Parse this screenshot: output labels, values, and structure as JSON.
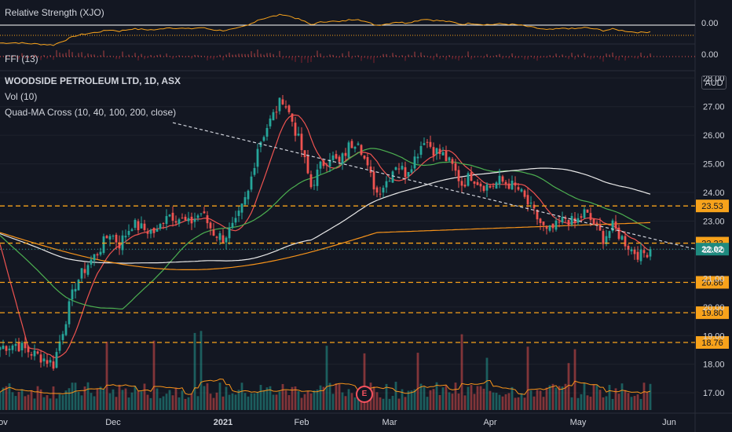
{
  "indicators": {
    "rs_label": "Relative Strength (XJO)",
    "rs_value": "0.00",
    "ffi_label": "FFI (13)",
    "ffi_value": "0.00"
  },
  "main": {
    "title": "WOODSIDE PETROLEUM LTD, 1D, ASX",
    "vol_label": "Vol (10)",
    "ma_label": "Quad-MA Cross (10, 40, 100, 200, close)",
    "currency": "AUD",
    "earnings_marker": "E"
  },
  "levels": [
    {
      "value": 23.53,
      "label": "23.53"
    },
    {
      "value": 22.23,
      "label": "22.23"
    },
    {
      "value": 20.86,
      "label": "20.86"
    },
    {
      "value": 19.8,
      "label": "19.80"
    },
    {
      "value": 18.76,
      "label": "18.76"
    }
  ],
  "current_price": {
    "value": 22.02,
    "label": "22.02"
  },
  "colors": {
    "up": "#26a69a",
    "down": "#ef5350",
    "level": "#f7a21b",
    "trend": "#d1d4dc",
    "ma10": "#ef5350",
    "ma40": "#4caf50",
    "ma100": "#e8e8e8",
    "ma200": "#f7931a",
    "rs": "#f7a21b"
  },
  "chart_data": {
    "type": "candlestick",
    "title": "WOODSIDE PETROLEUM LTD, 1D, ASX",
    "ylim": [
      16.4,
      28.2
    ],
    "y_ticks": [
      17,
      18,
      19,
      20,
      21,
      22,
      23,
      24,
      25,
      26,
      27,
      28
    ],
    "y_tick_labels": [
      "17.00",
      "18.00",
      "19.00",
      "20.00",
      "21.00",
      "22.00",
      "23.00",
      "24.00",
      "25.00",
      "26.00",
      "27.00",
      "28.00"
    ],
    "x_labels": [
      "Nov",
      "Dec",
      "2021",
      "Feb",
      "Mar",
      "Apr",
      "May",
      "Jun"
    ],
    "close_path": [
      [
        0,
        18.6
      ],
      [
        5,
        18.7
      ],
      [
        10,
        18.4
      ],
      [
        14,
        18.2
      ],
      [
        17,
        18.0
      ],
      [
        20,
        19.2
      ],
      [
        24,
        20.8
      ],
      [
        28,
        21.5
      ],
      [
        31,
        21.9
      ],
      [
        35,
        22.6
      ],
      [
        38,
        22.2
      ],
      [
        42,
        22.9
      ],
      [
        46,
        22.7
      ],
      [
        50,
        22.6
      ],
      [
        53,
        23.3
      ],
      [
        57,
        23.1
      ],
      [
        60,
        22.9
      ],
      [
        64,
        23.3
      ],
      [
        68,
        22.6
      ],
      [
        71,
        22.4
      ],
      [
        75,
        22.9
      ],
      [
        79,
        24.0
      ],
      [
        82,
        25.6
      ],
      [
        85,
        26.3
      ],
      [
        88,
        26.9
      ],
      [
        90,
        27.3
      ],
      [
        93,
        26.5
      ],
      [
        96,
        25.5
      ],
      [
        99,
        24.2
      ],
      [
        102,
        24.9
      ],
      [
        105,
        25.3
      ],
      [
        108,
        25.0
      ],
      [
        111,
        25.6
      ],
      [
        114,
        25.9
      ],
      [
        117,
        24.8
      ],
      [
        120,
        24.0
      ],
      [
        123,
        24.4
      ],
      [
        126,
        25.0
      ],
      [
        129,
        24.7
      ],
      [
        132,
        25.2
      ],
      [
        135,
        25.9
      ],
      [
        138,
        25.5
      ],
      [
        141,
        25.3
      ],
      [
        144,
        24.9
      ],
      [
        147,
        24.3
      ],
      [
        150,
        24.6
      ],
      [
        153,
        24.3
      ],
      [
        156,
        24.2
      ],
      [
        159,
        24.4
      ],
      [
        162,
        24.3
      ],
      [
        165,
        24.1
      ],
      [
        168,
        23.6
      ],
      [
        171,
        23.1
      ],
      [
        174,
        22.6
      ],
      [
        177,
        22.8
      ],
      [
        180,
        23.1
      ],
      [
        183,
        22.9
      ],
      [
        186,
        23.3
      ],
      [
        189,
        22.9
      ],
      [
        192,
        22.4
      ],
      [
        195,
        22.8
      ],
      [
        198,
        22.4
      ],
      [
        201,
        22.0
      ],
      [
        204,
        21.8
      ],
      [
        207,
        22.02
      ]
    ],
    "ma_series": [
      {
        "name": "MA 10",
        "period": 10
      },
      {
        "name": "MA 40",
        "period": 40
      },
      {
        "name": "MA 100",
        "period": 100
      },
      {
        "name": "MA 200",
        "period": 200
      }
    ],
    "trendline": [
      [
        27.9,
        0
      ],
      [
        22.4,
        207
      ]
    ],
    "x_axis_ticks": [
      0,
      36,
      71,
      96,
      124,
      156,
      184,
      213
    ]
  }
}
